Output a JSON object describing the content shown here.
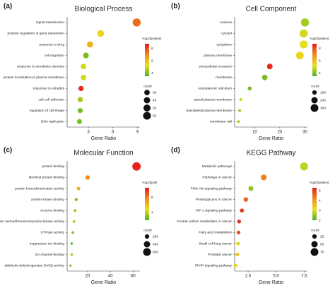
{
  "chart_data": [
    {
      "type": "scatter",
      "label": "(a)",
      "title": "Biological Process",
      "categories": [
        "signal transduction",
        "positive regulation of gene expression",
        "response to drug",
        "cell migration",
        "response to xenobiotic stimulus",
        "protein localization to plasma membrane",
        "response to estradiol",
        "cell-cell adhesion",
        "regulation of cell shape",
        "DNA replication"
      ],
      "x": [
        8.9,
        4.5,
        3.2,
        2.7,
        2.4,
        2.4,
        2.1,
        2.0,
        2.0,
        1.9
      ],
      "sizes": [
        65,
        45,
        38,
        33,
        30,
        30,
        27,
        27,
        25,
        25
      ],
      "color_values": [
        7.5,
        5.5,
        6.2,
        4.0,
        5.0,
        5.0,
        8.5,
        4.5,
        4.0,
        4.0
      ],
      "xlabel": "Gene Ratio",
      "xlim": [
        0.4,
        9.3
      ],
      "xticks": [
        3,
        6,
        9
      ],
      "color_title": "-log10(pvalue)",
      "color_lim": [
        3.5,
        8.8
      ],
      "color_ticks": [
        4,
        6,
        8
      ],
      "colorscale": [
        "#4daf2a",
        "#e8e01c",
        "#f08a1c",
        "#e41a1c"
      ],
      "size_title": "count",
      "size_ticks": [
        30,
        40,
        50,
        60
      ]
    },
    {
      "type": "scatter",
      "label": "(b)",
      "title": "Cell Component",
      "categories": [
        "nucleus",
        "cytosol",
        "cytoplasm",
        "plasma membrane",
        "extracellular exosome",
        "membrane",
        "endoplasmic reticulum",
        "apical plasma membrane",
        "basolateral plasma membrane",
        "membrane raft"
      ],
      "x": [
        30,
        29.5,
        29.5,
        28,
        16,
        14,
        8,
        4.5,
        4,
        3.5
      ],
      "sizes": [
        330,
        320,
        310,
        290,
        160,
        150,
        80,
        45,
        40,
        35
      ],
      "color_values": [
        4.5,
        5.0,
        5.2,
        5.5,
        8.5,
        4.0,
        4.0,
        5.0,
        4.5,
        4.5
      ],
      "xlabel": "Gene Ratio",
      "xlim": [
        2,
        31
      ],
      "xticks": [
        10,
        20,
        30
      ],
      "color_title": "-log10(pvalue)",
      "color_lim": [
        3.5,
        8.8
      ],
      "color_ticks": [
        4,
        6,
        8
      ],
      "colorscale": [
        "#4daf2a",
        "#e8e01c",
        "#f08a1c",
        "#e41a1c"
      ],
      "size_title": "count",
      "size_ticks": [
        100,
        200,
        300
      ]
    },
    {
      "type": "scatter",
      "label": "(c)",
      "title": "Molecular Function",
      "categories": [
        "protein binding",
        "identical protein binding",
        "protein homodimerization activity",
        "protein kinase binding",
        "enzyme binding",
        "protein serine/threonine/tyrosine kinase activity",
        "GTPase activity",
        "magnesium ion binding",
        "ion channel binding",
        "aldehyde dehydrogenase (NAD) activity"
      ],
      "x": [
        63,
        20,
        12,
        10,
        9,
        8,
        7,
        6,
        6,
        5
      ],
      "sizes": [
        700,
        200,
        130,
        100,
        90,
        80,
        70,
        60,
        60,
        50
      ],
      "color_values": [
        7.2,
        5.8,
        5.2,
        3.5,
        3.8,
        4.0,
        3.5,
        3.2,
        3.8,
        3.5
      ],
      "xlabel": "Gene Ratio",
      "xlim": [
        2,
        66
      ],
      "xticks": [
        20,
        40,
        60
      ],
      "color_title": "-log10(pval",
      "color_lim": [
        3,
        7.3
      ],
      "color_ticks": [
        4,
        6
      ],
      "colorscale": [
        "#4daf2a",
        "#e8e01c",
        "#f08a1c",
        "#e41a1c"
      ],
      "size_title": "count",
      "size_ticks": [
        200,
        400,
        600
      ]
    },
    {
      "type": "scatter",
      "label": "(d)",
      "title": "KEGG Pathway",
      "categories": [
        "Metabolic pathways",
        "Pathways in cancer",
        "PI3K-Akt signaling pathway",
        "Proteoglycans in cancer",
        "HIF-1 signaling pathway",
        "Central carbon metabolism in cancer",
        "Fatty acid metabolism",
        "Small cell lung cancer",
        "Prostate cancer",
        "PPAR signaling pathway"
      ],
      "x": [
        7.5,
        3.9,
        2.75,
        2.3,
        1.95,
        1.7,
        1.65,
        1.6,
        1.55,
        1.4
      ],
      "sizes": [
        80,
        42,
        30,
        25,
        20,
        18,
        18,
        17,
        16,
        15
      ],
      "color_values": [
        2.8,
        4.3,
        2.5,
        4.6,
        5.0,
        5.1,
        4.8,
        3.0,
        3.5,
        3.2
      ],
      "xlabel": "Gene Ratio",
      "xlim": [
        1.3,
        7.8
      ],
      "xticks": [
        2.5,
        {
          "value": 5,
          "label": "5.0"
        },
        7.5
      ],
      "color_title": "-log10(pvalue)",
      "color_lim": [
        2,
        5.3
      ],
      "color_ticks": [
        2,
        3,
        4,
        5
      ],
      "colorscale": [
        "#4daf2a",
        "#e8e01c",
        "#f08a1c",
        "#e41a1c"
      ],
      "size_title": "count",
      "size_ticks": [
        25,
        50,
        75
      ]
    }
  ]
}
